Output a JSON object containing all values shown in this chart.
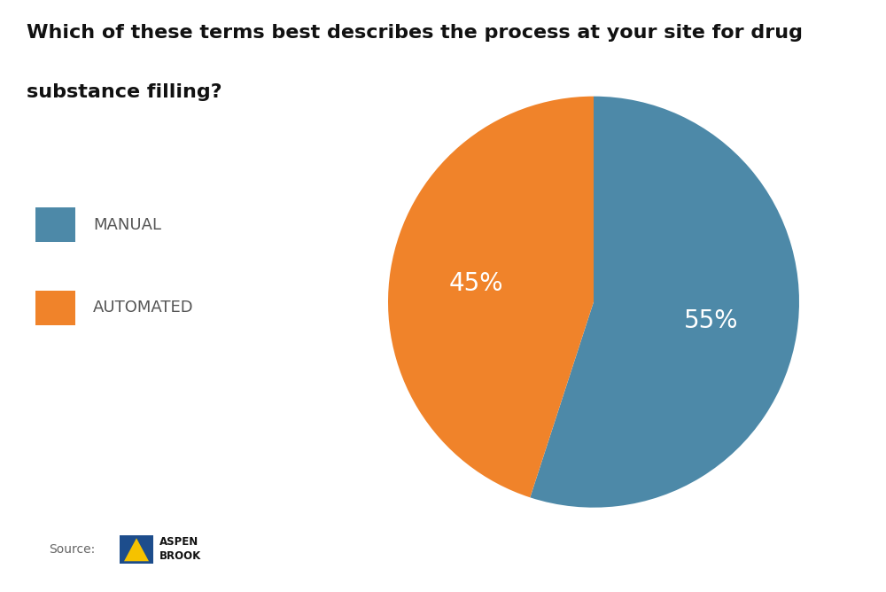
{
  "title_line1": "Which of these terms best describes the process at your site for drug",
  "title_line2": "substance filling?",
  "slices": [
    55,
    45
  ],
  "labels": [
    "55%",
    "45%"
  ],
  "legend_labels": [
    "MANUAL",
    "AUTOMATED"
  ],
  "colors": [
    "#4d89a8",
    "#f0832a"
  ],
  "text_color_on_slice": "#ffffff",
  "background_color": "#ffffff",
  "startangle": 90,
  "source_text": "Source:",
  "title_fontsize": 16,
  "label_fontsize": 20,
  "legend_fontsize": 13
}
